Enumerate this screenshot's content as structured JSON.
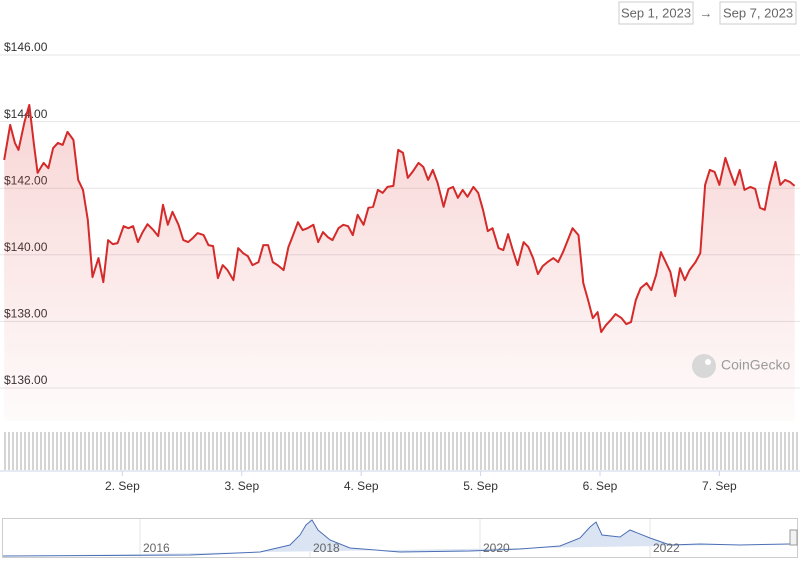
{
  "chart_data": {
    "type": "line",
    "color": "#d42a2a",
    "x": [
      1.01,
      1.06,
      1.1,
      1.13,
      1.18,
      1.22,
      1.26,
      1.29,
      1.34,
      1.38,
      1.42,
      1.46,
      1.5,
      1.54,
      1.59,
      1.63,
      1.67,
      1.71,
      1.75,
      1.8,
      1.84,
      1.88,
      1.92,
      1.96,
      2.01,
      2.05,
      2.09,
      2.13,
      2.17,
      2.21,
      2.26,
      2.3,
      2.34,
      2.38,
      2.42,
      2.47,
      2.51,
      2.55,
      2.59,
      2.63,
      2.68,
      2.72,
      2.76,
      2.8,
      2.84,
      2.88,
      2.93,
      2.97,
      3.01,
      3.05,
      3.09,
      3.14,
      3.18,
      3.22,
      3.26,
      3.3,
      3.35,
      3.39,
      3.43,
      3.47,
      3.51,
      3.55,
      3.6,
      3.64,
      3.68,
      3.72,
      3.76,
      3.81,
      3.85,
      3.89,
      3.93,
      3.97,
      4.02,
      4.06,
      4.1,
      4.14,
      4.18,
      4.22,
      4.27,
      4.31,
      4.35,
      4.39,
      4.43,
      4.48,
      4.52,
      4.56,
      4.6,
      4.64,
      4.69,
      4.73,
      4.77,
      4.81,
      4.85,
      4.89,
      4.94,
      4.98,
      5.02,
      5.06,
      5.1,
      5.15,
      5.19,
      5.23,
      5.27,
      5.31,
      5.36,
      5.4,
      5.44,
      5.48,
      5.52,
      5.56,
      5.61,
      5.65,
      5.69,
      5.73,
      5.77,
      5.82,
      5.86,
      5.9,
      5.94,
      5.98,
      6.01,
      6.05,
      6.09,
      6.13,
      6.18,
      6.22,
      6.26,
      6.3,
      6.34,
      6.39,
      6.43,
      6.47,
      6.51,
      6.55,
      6.59,
      6.63,
      6.67,
      6.71,
      6.75,
      6.8,
      6.84,
      6.88,
      6.92,
      6.96,
      7.0,
      7.05,
      7.09,
      7.13,
      7.17,
      7.21,
      7.26,
      7.3,
      7.34,
      7.38,
      7.42,
      7.47,
      7.51,
      7.55,
      7.59,
      7.63
    ],
    "values": [
      142.85,
      143.9,
      143.36,
      143.15,
      143.99,
      144.5,
      143.3,
      142.46,
      142.76,
      142.6,
      143.2,
      143.36,
      143.3,
      143.69,
      143.45,
      142.25,
      141.95,
      141.05,
      139.33,
      139.9,
      139.18,
      140.44,
      140.32,
      140.35,
      140.86,
      140.8,
      140.86,
      140.38,
      140.68,
      140.92,
      140.74,
      140.56,
      141.5,
      140.9,
      141.29,
      140.9,
      140.44,
      140.38,
      140.5,
      140.65,
      140.59,
      140.29,
      140.26,
      139.3,
      139.69,
      139.54,
      139.24,
      140.2,
      140.05,
      139.96,
      139.69,
      139.78,
      140.29,
      140.29,
      139.78,
      139.69,
      139.54,
      140.23,
      140.59,
      140.98,
      140.74,
      140.8,
      140.9,
      140.38,
      140.68,
      140.53,
      140.44,
      140.8,
      140.9,
      140.86,
      140.59,
      141.2,
      140.9,
      141.41,
      141.44,
      141.95,
      141.86,
      142.04,
      142.07,
      143.15,
      143.06,
      142.31,
      142.49,
      142.76,
      142.64,
      142.25,
      142.55,
      142.16,
      141.44,
      141.98,
      142.04,
      141.71,
      141.95,
      141.74,
      142.04,
      141.86,
      141.35,
      140.71,
      140.8,
      140.2,
      140.14,
      140.62,
      140.14,
      139.69,
      140.38,
      140.23,
      139.9,
      139.42,
      139.66,
      139.78,
      139.9,
      139.78,
      140.08,
      140.44,
      140.8,
      140.59,
      139.15,
      138.64,
      138.1,
      138.28,
      137.68,
      137.89,
      138.04,
      138.22,
      138.1,
      137.92,
      137.98,
      138.64,
      139.0,
      139.15,
      138.94,
      139.39,
      140.08,
      139.78,
      139.48,
      138.76,
      139.6,
      139.24,
      139.54,
      139.78,
      140.05,
      142.1,
      142.55,
      142.49,
      142.1,
      142.91,
      142.49,
      142.1,
      142.55,
      141.95,
      142.04,
      141.98,
      141.41,
      141.35,
      142.1,
      142.79,
      142.1,
      142.25,
      142.19,
      142.07
    ],
    "xlim": [
      1,
      7.65
    ],
    "xticks": [
      {
        "value": 2,
        "label": "2. Sep"
      },
      {
        "value": 3,
        "label": "3. Sep"
      },
      {
        "value": 4,
        "label": "4. Sep"
      },
      {
        "value": 5,
        "label": "5. Sep"
      },
      {
        "value": 6,
        "label": "6. Sep"
      },
      {
        "value": 7,
        "label": "7. Sep"
      }
    ],
    "ylim": [
      135,
      147.6
    ],
    "yticks": [
      {
        "value": 136,
        "label": "$136.00"
      },
      {
        "value": 138,
        "label": "$138.00"
      },
      {
        "value": 140,
        "label": "$140.00"
      },
      {
        "value": 142,
        "label": "$142.00"
      },
      {
        "value": 144,
        "label": "$144.00"
      },
      {
        "value": 146,
        "label": "$146.00"
      }
    ],
    "grid": true
  },
  "range": {
    "from": "Sep 1, 2023",
    "arrow": "→",
    "to": "Sep 7, 2023"
  },
  "watermark": "CoinGecko",
  "navigator": {
    "labels": [
      "2016",
      "2018",
      "2020",
      "2022"
    ]
  }
}
